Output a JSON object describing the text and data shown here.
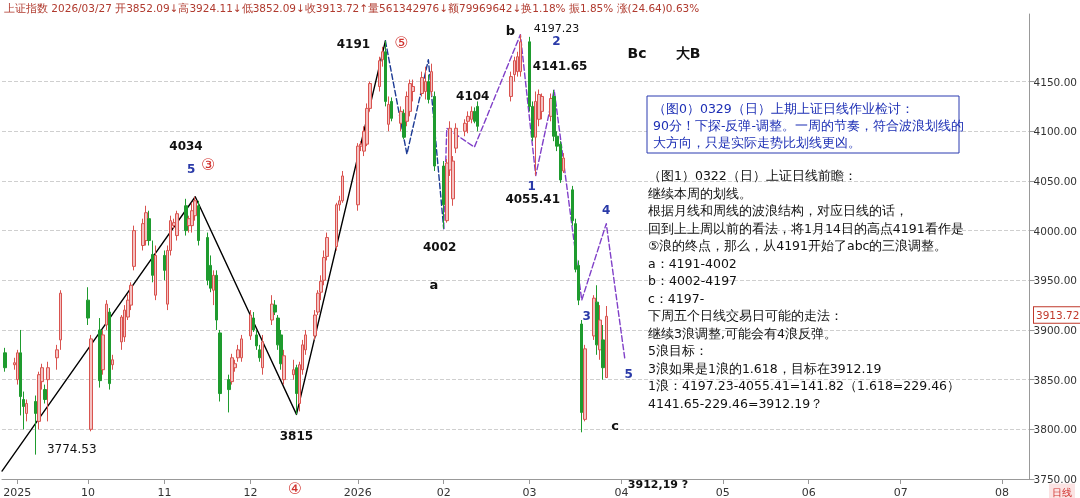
{
  "chart_data": {
    "type": "candlestick",
    "subtitle": "上证指数 2026/03/27 开3852.09↓高3924.11↓低3852.09↓收3913.72↑量561342976↓额79969642↓换1.18% 振1.85% 涨(24.64)0.63%",
    "series": [
      {
        "type": "candlestick",
        "x": [
          "2025-09-12",
          "2025-09-15",
          "2025-09-16",
          "2025-09-17",
          "2025-09-18",
          "2025-09-19",
          "2025-09-22",
          "2025-09-23",
          "2025-09-24",
          "2025-09-25",
          "2025-09-26",
          "2025-09-29",
          "2025-09-30",
          "2025-10-09",
          "2025-10-10",
          "2025-10-13",
          "2025-10-14",
          "2025-10-15",
          "2025-10-16",
          "2025-10-17",
          "2025-10-20",
          "2025-10-21",
          "2025-10-22",
          "2025-10-23",
          "2025-10-24",
          "2025-10-27",
          "2025-10-28",
          "2025-10-29",
          "2025-10-30",
          "2025-10-31",
          "2025-11-03",
          "2025-11-04",
          "2025-11-05",
          "2025-11-06",
          "2025-11-07",
          "2025-11-10",
          "2025-11-11",
          "2025-11-12",
          "2025-11-13",
          "2025-11-14",
          "2025-11-17",
          "2025-11-18",
          "2025-11-19",
          "2025-11-20",
          "2025-11-21",
          "2025-11-24",
          "2025-11-25",
          "2025-11-26",
          "2025-11-27",
          "2025-11-28",
          "2025-12-01",
          "2025-12-02",
          "2025-12-03",
          "2025-12-04",
          "2025-12-05",
          "2025-12-08",
          "2025-12-09",
          "2025-12-10",
          "2025-12-11",
          "2025-12-12",
          "2025-12-15",
          "2025-12-16",
          "2025-12-17",
          "2025-12-18",
          "2025-12-19",
          "2025-12-22",
          "2025-12-23",
          "2025-12-24",
          "2025-12-25",
          "2025-12-26",
          "2025-12-29",
          "2025-12-30",
          "2025-12-31",
          "2026-01-05",
          "2026-01-06",
          "2026-01-07",
          "2026-01-08",
          "2026-01-09",
          "2026-01-12",
          "2026-01-13",
          "2026-01-14",
          "2026-01-15",
          "2026-01-16",
          "2026-01-19",
          "2026-01-20",
          "2026-01-21",
          "2026-01-22",
          "2026-01-23",
          "2026-01-26",
          "2026-01-27",
          "2026-01-28",
          "2026-01-29",
          "2026-01-30",
          "2026-02-02",
          "2026-02-03",
          "2026-02-04",
          "2026-02-05",
          "2026-02-06",
          "2026-02-09",
          "2026-02-10",
          "2026-02-11",
          "2026-02-12",
          "2026-02-13",
          "2026-02-24",
          "2026-02-25",
          "2026-02-26",
          "2026-02-27",
          "2026-03-02",
          "2026-03-03",
          "2026-03-04",
          "2026-03-05",
          "2026-03-06",
          "2026-03-09",
          "2026-03-10",
          "2026-03-11",
          "2026-03-12",
          "2026-03-13",
          "2026-03-16",
          "2026-03-17",
          "2026-03-18",
          "2026-03-19",
          "2026-03-20",
          "2026-03-23",
          "2026-03-24",
          "2026-03-25",
          "2026-03-26",
          "2026-03-27"
        ],
        "ohlc": [
          [
            3877,
            3882,
            3858,
            3862
          ],
          [
            3865,
            3872,
            3860,
            3867
          ],
          [
            3850,
            3880,
            3845,
            3877
          ],
          [
            3877,
            3900,
            3814,
            3833
          ],
          [
            3830,
            3838,
            3800,
            3823
          ],
          [
            3816,
            3830,
            3808,
            3826
          ],
          [
            3828,
            3834,
            3774.53,
            3816
          ],
          [
            3808,
            3858,
            3800,
            3855
          ],
          [
            3848,
            3866,
            3840,
            3862
          ],
          [
            3840,
            3845,
            3826,
            3830
          ],
          [
            3850,
            3868,
            3808,
            3862
          ],
          [
            3872,
            3885,
            3860,
            3880
          ],
          [
            3890,
            3940,
            3880,
            3937
          ],
          [
            3930,
            3943,
            3905,
            3912
          ],
          [
            3800,
            3895,
            3798,
            3891
          ],
          [
            3900,
            3912,
            3842,
            3849
          ],
          [
            3860,
            3900,
            3855,
            3895
          ],
          [
            3905,
            3930,
            3900,
            3926
          ],
          [
            3918,
            3922,
            3840,
            3846
          ],
          [
            3865,
            3875,
            3860,
            3870
          ],
          [
            3888,
            3915,
            3880,
            3913
          ],
          [
            3893,
            3925,
            3888,
            3920
          ],
          [
            3913,
            3936,
            3910,
            3930
          ],
          [
            3925,
            3948,
            3920,
            3945
          ],
          [
            3964,
            4005,
            3960,
            4000
          ],
          [
            3985,
            4012,
            3980,
            4007
          ],
          [
            3990,
            4025,
            3985,
            4018
          ],
          [
            4012,
            4020,
            3985,
            3990
          ],
          [
            3976,
            3990,
            3948,
            3955
          ],
          [
            3935,
            3985,
            3930,
            3975
          ],
          [
            3975,
            3980,
            3950,
            3960
          ],
          [
            3926,
            3985,
            3920,
            3980
          ],
          [
            3980,
            4015,
            3975,
            4010
          ],
          [
            4005,
            4012,
            4002,
            4008
          ],
          [
            3995,
            4020,
            3990,
            4017
          ],
          [
            4025,
            4032,
            3995,
            4000
          ],
          [
            4005,
            4015,
            3998,
            4012
          ],
          [
            4005,
            4028,
            3998,
            4020
          ],
          [
            4015,
            4034.08,
            4010,
            4030
          ],
          [
            4025,
            4030,
            3985,
            3990
          ],
          [
            3993,
            3998,
            3945,
            3950
          ],
          [
            3965,
            3975,
            3938,
            3942
          ],
          [
            3940,
            3960,
            3925,
            3955
          ],
          [
            3955,
            3960,
            3900,
            3910
          ],
          [
            3897,
            3900,
            3828,
            3836
          ],
          [
            3850,
            3855,
            3817,
            3840
          ],
          [
            3848,
            3876,
            3845,
            3872
          ],
          [
            3862,
            3870,
            3858,
            3866
          ],
          [
            3872,
            3885,
            3868,
            3880
          ],
          [
            3872,
            3895,
            3868,
            3891
          ],
          [
            3894,
            3920,
            3890,
            3915
          ],
          [
            3912,
            3918,
            3898,
            3900
          ],
          [
            3895,
            3900,
            3880,
            3884
          ],
          [
            3880,
            3885,
            3868,
            3872
          ],
          [
            3862,
            3895,
            3855,
            3888
          ],
          [
            3910,
            3935,
            3905,
            3926
          ],
          [
            3925,
            3930,
            3915,
            3918
          ],
          [
            3912,
            3915,
            3880,
            3885
          ],
          [
            3895,
            3900,
            3860,
            3866
          ],
          [
            3850,
            3880,
            3845,
            3874
          ],
          [
            3855,
            3870,
            3850,
            3860
          ],
          [
            3862,
            3865,
            3815,
            3836
          ],
          [
            3826,
            3868,
            3818,
            3865
          ],
          [
            3860,
            3890,
            3855,
            3885
          ],
          [
            3880,
            3900,
            3875,
            3895
          ],
          [
            3894,
            3920,
            3890,
            3915
          ],
          [
            3918,
            3940,
            3915,
            3937
          ],
          [
            3938,
            3955,
            3930,
            3949
          ],
          [
            3950,
            3980,
            3945,
            3973
          ],
          [
            3974,
            3998,
            3970,
            3993
          ],
          [
            3984,
            4028,
            3980,
            4026
          ],
          [
            4026,
            4035,
            4020,
            4030
          ],
          [
            4030,
            4060,
            4028,
            4055
          ],
          [
            4026,
            4088,
            4020,
            4085
          ],
          [
            4085,
            4090,
            4080,
            4087
          ],
          [
            4080,
            4105,
            4075,
            4100
          ],
          [
            4087,
            4128,
            4085,
            4123
          ],
          [
            4123,
            4150,
            4120,
            4148
          ],
          [
            4145,
            4175,
            4140,
            4171
          ],
          [
            4172,
            4185,
            4165,
            4180
          ],
          [
            4180,
            4191,
            4125,
            4130
          ],
          [
            4107,
            4135,
            4100,
            4127
          ],
          [
            4130,
            4134,
            4110,
            4113
          ],
          [
            4108,
            4125,
            4100,
            4120
          ],
          [
            4118,
            4122,
            4092,
            4094
          ],
          [
            4110,
            4140,
            4105,
            4135
          ],
          [
            4120,
            4152,
            4115,
            4148
          ],
          [
            4140,
            4152,
            4130,
            4145
          ],
          [
            4138,
            4160,
            4135,
            4154
          ],
          [
            4140,
            4165,
            4132,
            4150
          ],
          [
            4150,
            4157,
            4128,
            4132
          ],
          [
            4140,
            4168,
            4135,
            4160
          ],
          [
            4135,
            4140,
            4060,
            4065
          ],
          [
            4065,
            4070,
            4002,
            4026
          ],
          [
            4010,
            4072,
            4008,
            4068
          ],
          [
            4061,
            4110,
            4055,
            4103
          ],
          [
            4032,
            4075,
            4025,
            4070
          ],
          [
            4083,
            4108,
            4078,
            4103
          ],
          [
            4100,
            4112,
            4095,
            4108
          ],
          [
            4110,
            4120,
            4098,
            4115
          ],
          [
            4112,
            4125,
            4108,
            4120
          ],
          [
            4120,
            4124,
            4108,
            4110
          ],
          [
            4125,
            4130,
            4100,
            4105
          ],
          [
            4135,
            4160,
            4130,
            4155
          ],
          [
            4157,
            4175,
            4150,
            4171
          ],
          [
            4160,
            4180,
            4155,
            4175
          ],
          [
            4160,
            4197.23,
            4155,
            4190
          ],
          [
            4190,
            4195,
            4120,
            4125
          ],
          [
            4125,
            4130,
            4090,
            4094
          ],
          [
            4094,
            4140,
            4055.41,
            4130
          ],
          [
            4112,
            4142,
            4105,
            4137
          ],
          [
            4120,
            4138,
            4112,
            4135
          ],
          [
            4115,
            4138,
            4110,
            4133
          ],
          [
            4135,
            4141.65,
            4090,
            4095
          ],
          [
            4095,
            4100,
            4080,
            4085
          ],
          [
            4087,
            4090,
            4048,
            4051
          ],
          [
            4060,
            4078,
            4058,
            4073
          ],
          [
            4041,
            4045,
            4005,
            4010
          ],
          [
            4007,
            4012,
            3958,
            3961
          ],
          [
            3965,
            3970,
            3925,
            3930
          ],
          [
            3906,
            3910,
            3797,
            3817
          ],
          [
            3810,
            3885,
            3808,
            3881
          ],
          [
            3894,
            3935,
            3890,
            3932
          ],
          [
            3928,
            3945,
            3875,
            3885
          ],
          [
            3880,
            3925,
            3870,
            3910
          ],
          [
            3890,
            3905,
            3850,
            3862
          ],
          [
            3852.09,
            3924.11,
            3852.09,
            3913.72
          ]
        ]
      },
      {
        "type": "line",
        "color": "#000000",
        "line_style": "solid",
        "x": [
          "2025-09-11",
          "2025-11-13",
          "2025-12-16",
          "2026-01-14"
        ],
        "values": [
          3758,
          4034.08,
          3815,
          4191
        ]
      },
      {
        "type": "line",
        "color": "#1c3a94",
        "line_style": "dashed",
        "x": [
          "2026-01-14",
          "2026-01-21",
          "2026-01-28",
          "2026-02-02"
        ],
        "values": [
          4191,
          4077,
          4172,
          4002
        ]
      },
      {
        "type": "line",
        "color": "#8040c8",
        "line_style": "dashed",
        "x": [
          "2026-02-02",
          "2026-02-03",
          "2026-02-12",
          "2026-02-27",
          "2026-03-04",
          "2026-03-10",
          "2026-03-19",
          "2026-03-27",
          "2026-04-02"
        ],
        "values": [
          4002,
          4103,
          4084,
          4197.23,
          4055.41,
          4141.65,
          3930,
          4007,
          3872
        ]
      }
    ],
    "xlim": [
      "2025-09-11",
      "2026-08-12"
    ],
    "xticks": [
      {
        "value": "2025-09-16",
        "label": "2025"
      },
      {
        "value": "2025-10-09",
        "label": "10"
      },
      {
        "value": "2025-11-03",
        "label": "11"
      },
      {
        "value": "2025-12-01",
        "label": "12"
      },
      {
        "value": "2026-01-05",
        "label": "2026"
      },
      {
        "value": "2026-02-02",
        "label": "02"
      },
      {
        "value": "2026-03-02",
        "label": "03"
      },
      {
        "value": "2026-04-01",
        "label": "04"
      },
      {
        "value": "2026-05-04",
        "label": "05"
      },
      {
        "value": "2026-06-01",
        "label": "06"
      },
      {
        "value": "2026-07-01",
        "label": "07"
      },
      {
        "value": "2026-08-03",
        "label": "08"
      }
    ],
    "ylim": [
      3750,
      4218
    ],
    "yticks": [
      {
        "value": 3750,
        "label": "3750.00"
      },
      {
        "value": 3800,
        "label": "3800.00"
      },
      {
        "value": 3850,
        "label": "3850.00"
      },
      {
        "value": 3900,
        "label": "3900.00"
      },
      {
        "value": 3950,
        "label": "3950.00"
      },
      {
        "value": 4000,
        "label": "4000.00"
      },
      {
        "value": 4050,
        "label": "4050.00"
      },
      {
        "value": 4100,
        "label": "4100.00"
      },
      {
        "value": 4150,
        "label": "4150.00"
      }
    ],
    "grid": "y",
    "annotations": [
      {
        "text": "4191",
        "x": "2026-01-14",
        "y": 4191
      },
      {
        "text": "⑤",
        "x": "2026-01-14",
        "y": 4191
      },
      "4034",
      {
        "text": "5",
        "x": "2025-11-13",
        "y": 4034.08
      },
      {
        "text": "③",
        "x": "2025-11-13",
        "y": 4034.08
      },
      {
        "text": "3774.53",
        "x": "2025-09-22",
        "y": 3774.53
      },
      {
        "text": "3815",
        "x": "2025-12-16",
        "y": 3815
      },
      "④",
      {
        "text": "4002",
        "x": "2026-02-02",
        "y": 4002
      },
      "a",
      {
        "text": "4104",
        "x": "2026-02-03",
        "y": 4103
      },
      {
        "text": "b",
        "x": "2026-02-27",
        "y": 4197.23
      },
      {
        "text": "4197.23",
        "x": "2026-02-27",
        "y": 4197.23
      },
      {
        "text": "2",
        "x": "2026-02-27",
        "y": 4197.23
      },
      {
        "text": "4141.65",
        "x": "2026-03-10",
        "y": 4141.65
      },
      {
        "text": "1",
        "x": "2026-03-04",
        "y": 4055.41
      },
      {
        "text": "4055.41",
        "x": "2026-03-04",
        "y": 4055.41
      },
      {
        "text": "3",
        "x": "2026-03-19",
        "y": 3930
      },
      {
        "text": "4",
        "x": "2026-03-27",
        "y": 4007
      },
      {
        "text": "5",
        "x": "2026-04-02",
        "y": 3872
      },
      "c",
      "3912,19 ?",
      "Bc",
      "大B",
      "（图0）0329（日）上期上证日线作业检讨：",
      "90分！下探-反弹-调整。一周的节奏，符合波浪划线的",
      "大方向，只是实际走势比划线更凶。",
      "（图1）0322（日）上证日线前瞻：",
      "继续本周的划线。",
      "根据月线和周线的波浪结构，对应日线的话，",
      "回到上上周以前的看法，将1月14日的高点4191看作是",
      "⑤浪的终点，那么，从4191开始了abc的三浪调整。",
      "a：4191-4002",
      "b：4002-4197",
      "c：4197-",
      "下周五个日线交易日可能的走法：",
      "继续3浪调整,可能会有4浪反弹。",
      "5浪目标：",
      "3浪如果是1浪的1.618，目标在3912.19",
      "1浪：4197.23-4055.41=141.82（1.618=229.46）",
      "4141.65-229.46=3912.19？",
      "日线",
      "3913.72"
    ]
  }
}
